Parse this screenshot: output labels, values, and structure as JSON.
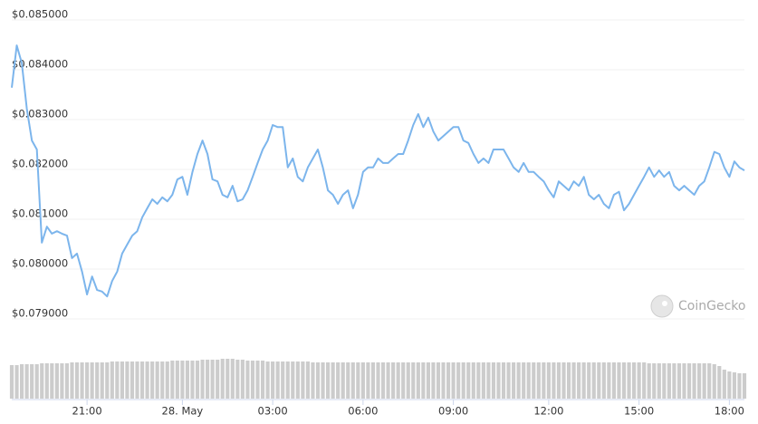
{
  "chart_data": {
    "type": "line",
    "watermark": "CoinGecko",
    "categories": [
      null,
      null,
      null,
      null,
      null,
      null,
      null,
      null,
      null,
      null,
      null,
      null,
      null,
      null,
      null,
      "21:00",
      null,
      null,
      null,
      null,
      null,
      null,
      null,
      null,
      null,
      null,
      null,
      null,
      null,
      null,
      null,
      null,
      null,
      null,
      "28. May",
      null,
      null,
      null,
      null,
      null,
      null,
      null,
      null,
      null,
      null,
      null,
      null,
      null,
      null,
      null,
      null,
      null,
      "03:00",
      null,
      null,
      null,
      null,
      null,
      null,
      null,
      null,
      null,
      null,
      null,
      null,
      null,
      null,
      null,
      null,
      null,
      "06:00",
      null,
      null,
      null,
      null,
      null,
      null,
      null,
      null,
      null,
      null,
      null,
      null,
      null,
      null,
      null,
      null,
      null,
      "09:00",
      null,
      null,
      null,
      null,
      null,
      null,
      null,
      null,
      null,
      null,
      null,
      null,
      null,
      null,
      null,
      null,
      null,
      null,
      "12:00",
      null,
      null,
      null,
      null,
      null,
      null,
      null,
      null,
      null,
      null,
      null,
      null,
      null,
      null,
      null,
      null,
      null,
      "15:00",
      null,
      null,
      null,
      null,
      null,
      null,
      null,
      null,
      null,
      null,
      null,
      null,
      null,
      null,
      null,
      null,
      null,
      "18:00",
      null,
      null,
      null
    ],
    "series": [
      {
        "color": "#7cb5ec",
        "values": [
          0.08364,
          0.08449,
          0.08413,
          0.08322,
          0.08258,
          0.0824,
          0.08053,
          0.08085,
          0.08071,
          0.08076,
          0.08071,
          0.08067,
          0.08022,
          0.08031,
          0.07995,
          0.07949,
          0.07985,
          0.07958,
          0.07955,
          0.07945,
          0.07976,
          0.07995,
          0.08031,
          0.08049,
          0.08067,
          0.08076,
          0.08104,
          0.08122,
          0.0814,
          0.08131,
          0.08144,
          0.08136,
          0.08149,
          0.0818,
          0.08185,
          0.08149,
          0.08195,
          0.08231,
          0.08258,
          0.08231,
          0.0818,
          0.08176,
          0.08149,
          0.08144,
          0.08167,
          0.08136,
          0.0814,
          0.08158,
          0.08185,
          0.08213,
          0.0824,
          0.08258,
          0.08289,
          0.08285,
          0.08285,
          0.08204,
          0.08222,
          0.08185,
          0.08176,
          0.08204,
          0.08222,
          0.0824,
          0.08204,
          0.08158,
          0.08149,
          0.08131,
          0.08149,
          0.08158,
          0.08122,
          0.08149,
          0.08195,
          0.08204,
          0.08204,
          0.08222,
          0.08213,
          0.08213,
          0.08222,
          0.08231,
          0.08231,
          0.08258,
          0.08289,
          0.08311,
          0.08285,
          0.08304,
          0.08276,
          0.08258,
          0.08267,
          0.08276,
          0.08285,
          0.08285,
          0.08258,
          0.08253,
          0.08231,
          0.08213,
          0.08222,
          0.08213,
          0.0824,
          0.0824,
          0.0824,
          0.08222,
          0.08204,
          0.08195,
          0.08213,
          0.08195,
          0.08195,
          0.08185,
          0.08176,
          0.08158,
          0.08144,
          0.08176,
          0.08167,
          0.08158,
          0.08176,
          0.08167,
          0.08185,
          0.08149,
          0.0814,
          0.08149,
          0.08131,
          0.08122,
          0.08149,
          0.08155,
          0.08118,
          0.08131,
          0.08149,
          0.08167,
          0.08185,
          0.08204,
          0.08185,
          0.08198,
          0.08185,
          0.08195,
          0.08167,
          0.08158,
          0.08167,
          0.08158,
          0.08149,
          0.08167,
          0.08176,
          0.08204,
          0.08235,
          0.08231,
          0.08204,
          0.08185,
          0.08216,
          0.08204,
          0.08198
        ]
      },
      {
        "color": "#cccccc",
        "axis": "y2",
        "values": [
          37,
          37,
          38,
          38,
          38,
          38,
          39,
          39,
          39,
          39,
          39,
          39,
          40,
          40,
          40,
          40,
          40,
          40,
          40,
          40,
          41,
          41,
          41,
          41,
          41,
          41,
          41,
          41,
          41,
          41,
          41,
          41,
          42,
          42,
          42,
          42,
          42,
          42,
          43,
          43,
          43,
          43,
          44,
          44,
          44,
          43,
          43,
          42,
          42,
          42,
          42,
          41,
          41,
          41,
          41,
          41,
          41,
          41,
          41,
          41,
          40,
          40,
          40,
          40,
          40,
          40,
          40,
          40,
          40,
          40,
          40,
          40,
          40,
          40,
          40,
          40,
          40,
          40,
          40,
          40,
          40,
          40,
          40,
          40,
          40,
          40,
          40,
          40,
          40,
          40,
          40,
          40,
          40,
          40,
          40,
          40,
          40,
          40,
          40,
          40,
          40,
          40,
          40,
          40,
          40,
          40,
          40,
          40,
          40,
          40,
          40,
          40,
          40,
          40,
          40,
          40,
          40,
          40,
          40,
          40,
          40,
          40,
          40,
          40,
          40,
          40,
          40,
          39,
          39,
          39,
          39,
          39,
          39,
          39,
          39,
          39,
          39,
          39,
          39,
          39,
          38,
          36,
          32,
          30,
          29,
          28,
          28
        ]
      }
    ],
    "ylim": [
      0.0789,
      0.0851
    ],
    "yticks": [
      {
        "value": 0.079,
        "label": "$0.079000"
      },
      {
        "value": 0.08,
        "label": "$0.080000"
      },
      {
        "value": 0.081,
        "label": "$0.081000"
      },
      {
        "value": 0.082,
        "label": "$0.082000"
      },
      {
        "value": 0.083,
        "label": "$0.083000"
      },
      {
        "value": 0.084,
        "label": "$0.084000"
      },
      {
        "value": 0.085,
        "label": "$0.085000"
      }
    ],
    "y2lim": [
      0,
      100
    ],
    "grid": true
  }
}
